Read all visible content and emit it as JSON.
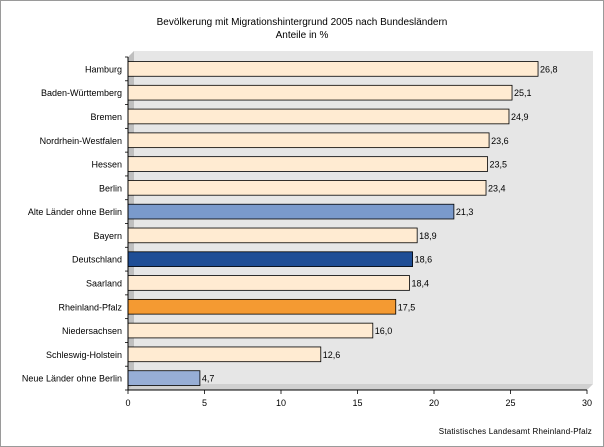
{
  "chart_data": {
    "type": "bar",
    "orientation": "horizontal",
    "title": "Bevölkerung mit Migrationshintergrund 2005 nach Bundesländern",
    "subtitle": "Anteile in %",
    "categories": [
      "Hamburg",
      "Baden-Württemberg",
      "Bremen",
      "Nordrhein-Westfalen",
      "Hessen",
      "Berlin",
      "Alte Länder ohne Berlin",
      "Bayern",
      "Deutschland",
      "Saarland",
      "Rheinland-Pfalz",
      "Niedersachsen",
      "Schleswig-Holstein",
      "Neue Länder ohne Berlin"
    ],
    "values": [
      26.8,
      25.1,
      24.9,
      23.6,
      23.5,
      23.4,
      21.3,
      18.9,
      18.6,
      18.4,
      17.5,
      16.0,
      12.6,
      4.7
    ],
    "value_labels": [
      "26,8",
      "25,1",
      "24,9",
      "23,6",
      "23,5",
      "23,4",
      "21,3",
      "18,9",
      "18,6",
      "18,4",
      "17,5",
      "16,0",
      "12,6",
      "4,7"
    ],
    "bar_colors": [
      "#FFEBD2",
      "#FFEBD2",
      "#FFEBD2",
      "#FFEBD2",
      "#FFEBD2",
      "#FFEBD2",
      "#7A9ACC",
      "#FFEBD2",
      "#1F4E96",
      "#FFEBD2",
      "#F49A32",
      "#FFEBD2",
      "#FFEBD2",
      "#97AED6"
    ],
    "xlim": [
      0,
      30
    ],
    "xticks": [
      "0",
      "5",
      "10",
      "15",
      "20",
      "25",
      "30"
    ],
    "xlabel": "",
    "ylabel": "",
    "grid": false,
    "legend": "none",
    "plot_background": "#E6E6E6"
  },
  "source": "Statistisches Landesamt Rheinland-Pfalz"
}
